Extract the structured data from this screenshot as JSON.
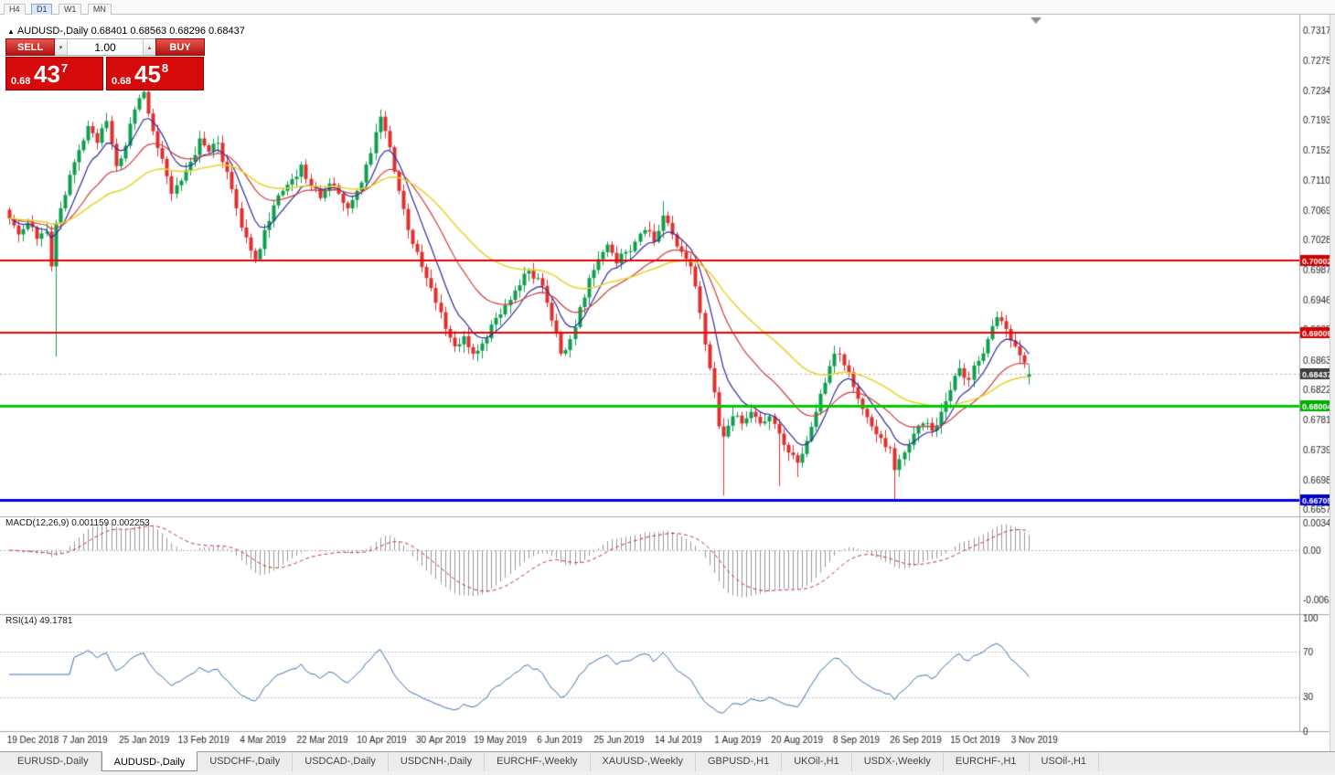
{
  "toolbar": {
    "timeframes": [
      "H4",
      "D1",
      "W1",
      "MN"
    ],
    "active": "D1"
  },
  "icons": {
    "collapse_icon": "▲",
    "volume_down_icon": "▾",
    "volume_up_icon": "▴"
  },
  "chart": {
    "header_line": "AUDUSD-,Daily 0.68401 0.68563 0.68296 0.68437",
    "symbol": "AUDUSD-,Daily"
  },
  "trade_panel": {
    "sell_label": "SELL",
    "buy_label": "BUY",
    "volume": "1.00",
    "bid": {
      "prefix": "0.68",
      "big": "43",
      "sup": "7"
    },
    "ask": {
      "prefix": "0.68",
      "big": "45",
      "sup": "8"
    }
  },
  "indicators": {
    "macd_label": "MACD(12,26,9) 0.001159 0.002253",
    "rsi_label": "RSI(14) 49.1781"
  },
  "axis": {
    "price_ticks": [
      "0.73170",
      "0.72750",
      "0.72340",
      "0.71930",
      "0.71520",
      "0.71100",
      "0.70690",
      "0.70280",
      "0.69870",
      "0.69460",
      "0.69050",
      "0.68630",
      "0.68220",
      "0.67810",
      "0.67390",
      "0.66980",
      "0.66570"
    ],
    "date_labels": [
      "19 Dec 2018",
      "7 Jan 2019",
      "25 Jan 2019",
      "13 Feb 2019",
      "4 Mar 2019",
      "22 Mar 2019",
      "10 Apr 2019",
      "30 Apr 2019",
      "19 May 2019",
      "6 Jun 2019",
      "25 Jun 2019",
      "14 Jul 2019",
      "1 Aug 2019",
      "20 Aug 2019",
      "8 Sep 2019",
      "26 Sep 2019",
      "15 Oct 2019",
      "3 Nov 2019"
    ],
    "macd_ticks": [
      "0.00349",
      "0.00",
      "-0.00637"
    ],
    "rsi_ticks": [
      "100",
      "70",
      "30",
      "0"
    ]
  },
  "price_tags": [
    {
      "text": "0.70002",
      "price": 0.70002,
      "color": "#d20000"
    },
    {
      "text": "0.69009",
      "price": 0.69009,
      "color": "#d20000"
    },
    {
      "text": "0.68437",
      "price": 0.68437,
      "color": "#3c3c3c"
    },
    {
      "text": "0.68004",
      "price": 0.68004,
      "color": "#00ae00"
    },
    {
      "text": "0.66705",
      "price": 0.66705,
      "color": "#0000cc"
    }
  ],
  "colors": {
    "candle_up": "#0f9e4e",
    "candle_down": "#df2f2f",
    "ma_fast": "#2d2d9e",
    "ma_medium": "#cf3b3b",
    "ma_slow": "#e6d32c",
    "hline_red": "#ee0000",
    "hline_green": "#00cc00",
    "hline_blue": "#0000ee",
    "macd_hist": "#999999",
    "macd_signal": "#c83232",
    "rsi_line": "#3e6fb0"
  },
  "tabs": {
    "active_index": 1,
    "items": [
      "EURUSD-,Daily",
      "AUDUSD-,Daily",
      "USDCHF-,Daily",
      "USDCAD-,Daily",
      "USDCNH-,Daily",
      "EURCHF-,Weekly",
      "XAUUSD-,Weekly",
      "GBPUSD-,H1",
      "UKOil-,H1",
      "USDX-,Weekly",
      "EURCHF-,H1",
      "USOil-,H1"
    ],
    "note": ""
  },
  "chart_data": {
    "type": "candlestick",
    "symbol": "AUDUSD",
    "timeframe": "Daily",
    "current": {
      "open": 0.68401,
      "high": 0.68563,
      "low": 0.68296,
      "close": 0.68437,
      "bid": 0.68437,
      "ask": 0.68458
    },
    "price_range": [
      0.6657,
      0.7317
    ],
    "candle_count": 221,
    "close_anchors": [
      [
        0,
        0.7058
      ],
      [
        2,
        0.7036
      ],
      [
        4,
        0.7052
      ],
      [
        6,
        0.703
      ],
      [
        8,
        0.704
      ],
      [
        9,
        0.6992
      ],
      [
        10,
        0.7052
      ],
      [
        11,
        0.7072
      ],
      [
        13,
        0.7118
      ],
      [
        15,
        0.7152
      ],
      [
        17,
        0.7185
      ],
      [
        19,
        0.7162
      ],
      [
        21,
        0.7192
      ],
      [
        23,
        0.713
      ],
      [
        25,
        0.7158
      ],
      [
        27,
        0.7208
      ],
      [
        29,
        0.7232
      ],
      [
        31,
        0.7178
      ],
      [
        33,
        0.714
      ],
      [
        35,
        0.7092
      ],
      [
        37,
        0.711
      ],
      [
        39,
        0.7136
      ],
      [
        41,
        0.7168
      ],
      [
        43,
        0.715
      ],
      [
        45,
        0.7162
      ],
      [
        47,
        0.7122
      ],
      [
        49,
        0.7072
      ],
      [
        51,
        0.7032
      ],
      [
        53,
        0.7002
      ],
      [
        55,
        0.7042
      ],
      [
        57,
        0.7076
      ],
      [
        59,
        0.7096
      ],
      [
        61,
        0.7112
      ],
      [
        63,
        0.7132
      ],
      [
        65,
        0.7102
      ],
      [
        67,
        0.7086
      ],
      [
        69,
        0.7106
      ],
      [
        71,
        0.7092
      ],
      [
        73,
        0.7072
      ],
      [
        75,
        0.7096
      ],
      [
        77,
        0.7132
      ],
      [
        80,
        0.7198
      ],
      [
        82,
        0.7156
      ],
      [
        84,
        0.7096
      ],
      [
        86,
        0.7042
      ],
      [
        88,
        0.7012
      ],
      [
        90,
        0.6976
      ],
      [
        92,
        0.6942
      ],
      [
        94,
        0.6906
      ],
      [
        96,
        0.6882
      ],
      [
        98,
        0.6896
      ],
      [
        100,
        0.6872
      ],
      [
        102,
        0.6886
      ],
      [
        104,
        0.6912
      ],
      [
        106,
        0.6926
      ],
      [
        108,
        0.6946
      ],
      [
        110,
        0.6966
      ],
      [
        112,
        0.6986
      ],
      [
        114,
        0.6976
      ],
      [
        116,
        0.6942
      ],
      [
        119,
        0.6872
      ],
      [
        121,
        0.6892
      ],
      [
        123,
        0.6936
      ],
      [
        125,
        0.6976
      ],
      [
        127,
        0.7002
      ],
      [
        129,
        0.7022
      ],
      [
        131,
        0.6996
      ],
      [
        133,
        0.7012
      ],
      [
        135,
        0.7026
      ],
      [
        137,
        0.7042
      ],
      [
        139,
        0.7026
      ],
      [
        141,
        0.7062
      ],
      [
        143,
        0.7036
      ],
      [
        145,
        0.7012
      ],
      [
        147,
        0.6992
      ],
      [
        149,
        0.6928
      ],
      [
        151,
        0.6852
      ],
      [
        153,
        0.6772
      ],
      [
        154,
        0.6758
      ],
      [
        156,
        0.6786
      ],
      [
        158,
        0.6776
      ],
      [
        160,
        0.6792
      ],
      [
        162,
        0.6776
      ],
      [
        164,
        0.6786
      ],
      [
        166,
        0.6762
      ],
      [
        168,
        0.6736
      ],
      [
        170,
        0.6722
      ],
      [
        172,
        0.6752
      ],
      [
        174,
        0.6792
      ],
      [
        176,
        0.6832
      ],
      [
        178,
        0.6872
      ],
      [
        180,
        0.6856
      ],
      [
        182,
        0.6826
      ],
      [
        184,
        0.6796
      ],
      [
        186,
        0.6772
      ],
      [
        188,
        0.6756
      ],
      [
        190,
        0.6742
      ],
      [
        191,
        0.6712
      ],
      [
        193,
        0.6736
      ],
      [
        195,
        0.6762
      ],
      [
        197,
        0.6776
      ],
      [
        199,
        0.6766
      ],
      [
        201,
        0.6792
      ],
      [
        203,
        0.6822
      ],
      [
        205,
        0.6852
      ],
      [
        207,
        0.6836
      ],
      [
        209,
        0.6862
      ],
      [
        211,
        0.6892
      ],
      [
        213,
        0.6922
      ],
      [
        215,
        0.6906
      ],
      [
        217,
        0.6882
      ],
      [
        219,
        0.686
      ],
      [
        220,
        0.68437
      ]
    ],
    "wick_overrides": [
      [
        10,
        "low",
        0.6868
      ],
      [
        29,
        "high",
        0.7252
      ],
      [
        80,
        "high",
        0.7208
      ],
      [
        141,
        "high",
        0.7082
      ],
      [
        154,
        "low",
        0.6677
      ],
      [
        166,
        "low",
        0.669
      ],
      [
        170,
        "low",
        0.6702
      ],
      [
        191,
        "low",
        0.66705
      ],
      [
        213,
        "high",
        0.693
      ]
    ],
    "moving_averages": [
      {
        "name": "fast",
        "period": 8
      },
      {
        "name": "medium",
        "period": 21
      },
      {
        "name": "slow",
        "period": 45
      }
    ],
    "macd": {
      "fast": 12,
      "slow": 26,
      "signal": 9,
      "current_main": 0.001159,
      "current_signal": 0.002253,
      "range": [
        -0.00637,
        0.00349
      ]
    },
    "rsi": {
      "period": 14,
      "current": 49.1781,
      "levels": [
        70,
        30
      ],
      "range": [
        0,
        100
      ]
    },
    "horizontal_levels": [
      0.70002,
      0.69009,
      0.68004,
      0.66705
    ]
  }
}
